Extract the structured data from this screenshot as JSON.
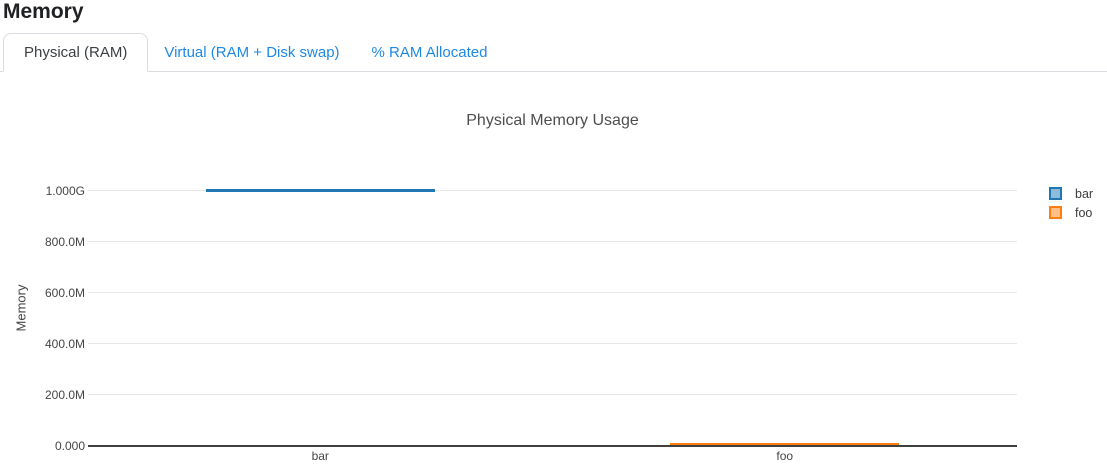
{
  "page_title": "Memory",
  "tabs": [
    {
      "label": "Physical (RAM)",
      "active": true
    },
    {
      "label": "Virtual (RAM + Disk swap)",
      "active": false
    },
    {
      "label": "% RAM Allocated",
      "active": false
    }
  ],
  "colors": {
    "tab_link": "#1e88e5",
    "active_tab_text": "#3c4043",
    "tab_border": "#d9dce0",
    "axis_line": "#404040",
    "gridline": "#e7e7e7",
    "bar_series_blue": "#1f77b4",
    "foo_series_orange": "#ff7f0e"
  },
  "chart_data": {
    "type": "bar",
    "title": "Physical Memory Usage",
    "xlabel": "",
    "ylabel": "Memory",
    "categories": [
      "bar",
      "foo"
    ],
    "series": [
      {
        "name": "bar",
        "color": "#1f77b4",
        "legend_fill": "#8fbbda",
        "values": [
          1000000000,
          null
        ]
      },
      {
        "name": "foo",
        "color": "#ff7f0e",
        "legend_fill": "#ffbf87",
        "values": [
          null,
          5000000
        ]
      }
    ],
    "ylim": [
      0,
      1085000000
    ],
    "yticks": [
      {
        "value": 0,
        "label": "0.000"
      },
      {
        "value": 200000000,
        "label": "200.0M"
      },
      {
        "value": 400000000,
        "label": "400.0M"
      },
      {
        "value": 600000000,
        "label": "600.0M"
      },
      {
        "value": 800000000,
        "label": "800.0M"
      },
      {
        "value": 1000000000,
        "label": "1.000G"
      }
    ],
    "grid": true,
    "legend_position": "right",
    "legend_entries": [
      "bar",
      "foo"
    ]
  }
}
